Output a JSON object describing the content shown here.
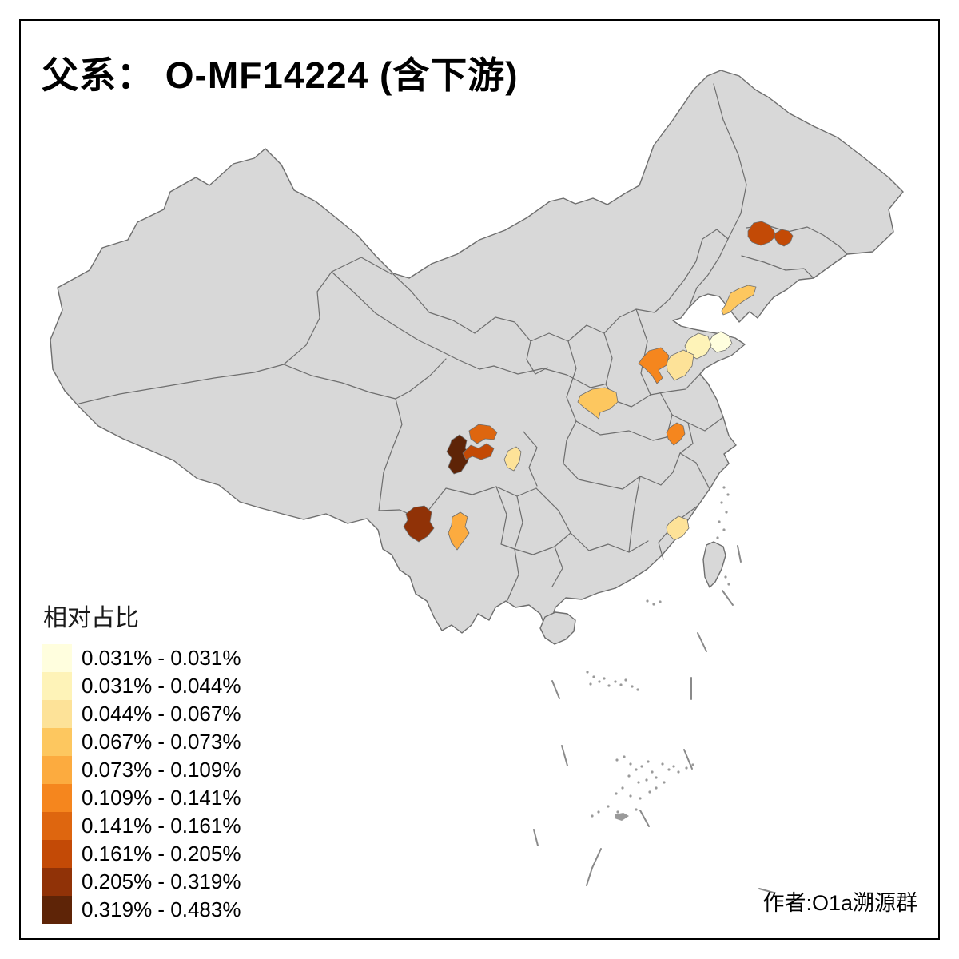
{
  "title": "父系： O-MF14224 (含下游)",
  "attribution": "作者:O1a溯源群",
  "legend": {
    "title": "相对占比",
    "entries": [
      {
        "label": "0.031% - 0.031%",
        "color": "#FFFEDE"
      },
      {
        "label": "0.031% - 0.044%",
        "color": "#FEF3B8"
      },
      {
        "label": "0.044% - 0.067%",
        "color": "#FDE298"
      },
      {
        "label": "0.067% - 0.073%",
        "color": "#FDC75F"
      },
      {
        "label": "0.073% - 0.109%",
        "color": "#FCAB3F"
      },
      {
        "label": "0.109% - 0.141%",
        "color": "#F5861E"
      },
      {
        "label": "0.141% - 0.161%",
        "color": "#DE660F"
      },
      {
        "label": "0.161% - 0.205%",
        "color": "#C34A06"
      },
      {
        "label": "0.205% - 0.319%",
        "color": "#903207"
      },
      {
        "label": "0.319% - 0.483%",
        "color": "#5E2407"
      }
    ]
  },
  "map": {
    "base_fill": "#D8D8D8",
    "border_color": "#6E6E6E",
    "frame_color": "#000000",
    "background": "#FFFFFF",
    "regions": [
      {
        "id": "jilin-west",
        "color": "#C34A06",
        "range": "0.161% - 0.205%"
      },
      {
        "id": "jilin-east",
        "color": "#C34A06",
        "range": "0.161% - 0.205%"
      },
      {
        "id": "dalian",
        "color": "#FDC75F",
        "range": "0.067% - 0.073%"
      },
      {
        "id": "shandong-peninsula-cream",
        "color": "#FFFEDE",
        "range": "0.031% - 0.031%"
      },
      {
        "id": "shandong-pale-yellow",
        "color": "#FEF3B8",
        "range": "0.031% - 0.044%"
      },
      {
        "id": "shandong-central-wheat",
        "color": "#FDE298",
        "range": "0.044% - 0.067%"
      },
      {
        "id": "shandong-west-orange",
        "color": "#F5861E",
        "range": "0.109% - 0.141%"
      },
      {
        "id": "henan-nanyang",
        "color": "#FDC75F",
        "range": "0.067% - 0.073%"
      },
      {
        "id": "anhui-orange",
        "color": "#F5861E",
        "range": "0.109% - 0.141%"
      },
      {
        "id": "sichuan-north-orange",
        "color": "#DE660F",
        "range": "0.141% - 0.161%"
      },
      {
        "id": "sichuan-dark-brown",
        "color": "#5E2407",
        "range": "0.319% - 0.483%"
      },
      {
        "id": "sichuan-red-orange",
        "color": "#C34A06",
        "range": "0.161% - 0.205%"
      },
      {
        "id": "sichuan-basin-wheat",
        "color": "#FDE298",
        "range": "0.044% - 0.067%"
      },
      {
        "id": "yunnan-west-brown",
        "color": "#903207",
        "range": "0.205% - 0.319%"
      },
      {
        "id": "yunnan-central-orange",
        "color": "#FCAB3F",
        "range": "0.073% - 0.109%"
      },
      {
        "id": "fujian-wheat",
        "color": "#FDE298",
        "range": "0.044% - 0.067%"
      }
    ]
  }
}
